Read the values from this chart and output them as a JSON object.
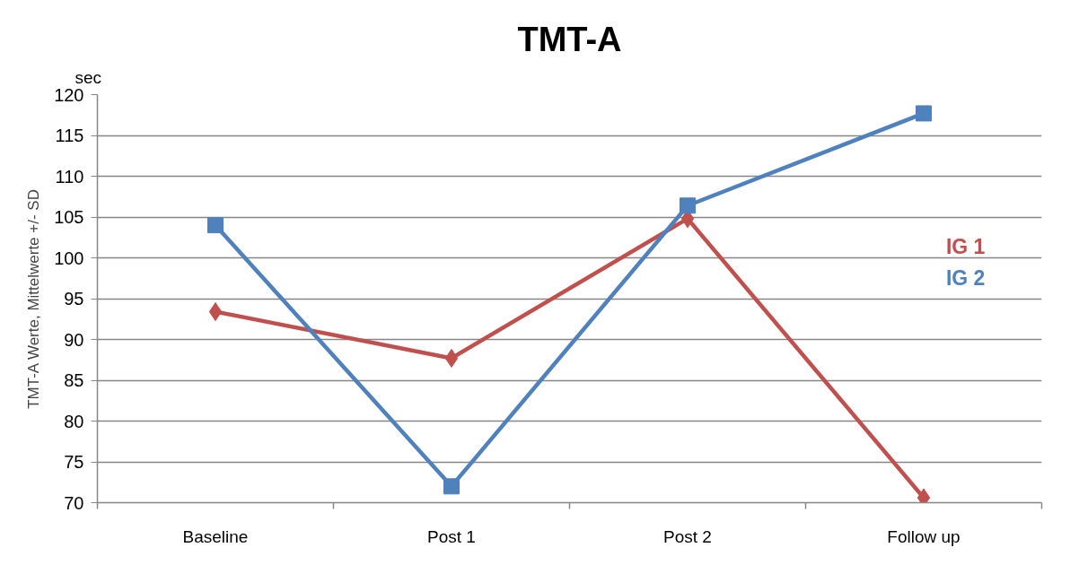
{
  "chart_data": {
    "type": "line",
    "title": "TMT-A",
    "ylabel": "TMT-A Werte, Mittelwerte +/- SD",
    "annotations": [
      "sec"
    ],
    "categories": [
      "Baseline",
      "Post 1",
      "Post 2",
      "Follow up"
    ],
    "series": [
      {
        "name": "IG 1",
        "color": "#c0504d",
        "marker": "diamond",
        "values": [
          93.4,
          87.7,
          104.8,
          70.6
        ]
      },
      {
        "name": "IG 2",
        "color": "#4f81bd",
        "marker": "square",
        "values": [
          104.0,
          72.0,
          106.4,
          117.7
        ]
      }
    ],
    "ylim": [
      70,
      120
    ],
    "yticks": [
      70,
      75,
      80,
      85,
      90,
      95,
      100,
      105,
      110,
      115,
      120
    ],
    "grid": "y",
    "legend": "right",
    "line_style": "solid"
  }
}
